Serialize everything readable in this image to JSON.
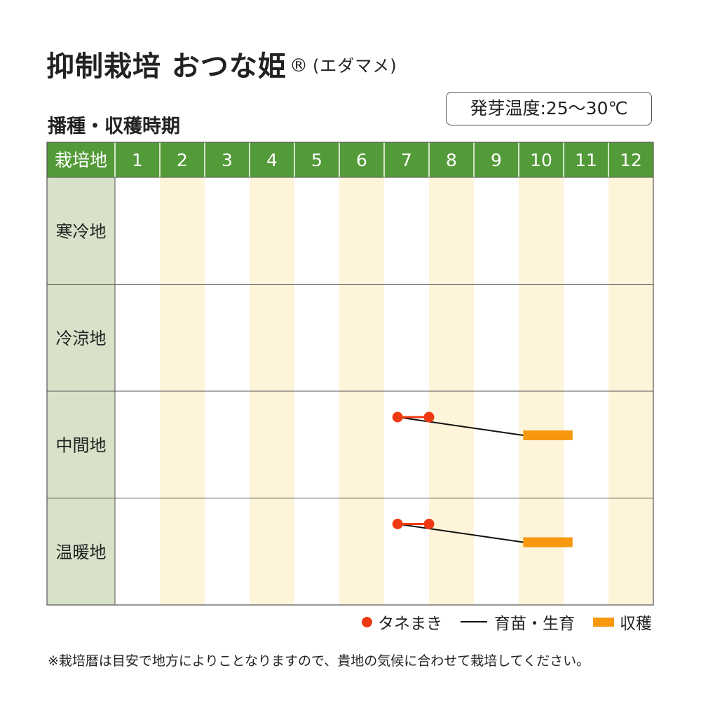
{
  "header": {
    "title": "抑制栽培 おつな姫",
    "registered": "®",
    "title_note": "(エダマメ)",
    "subtitle": "播種・収穫時期",
    "temperature": "発芽温度:25〜30℃"
  },
  "chart_data": {
    "type": "table",
    "corner_label": "栽培地",
    "months": [
      "1",
      "2",
      "3",
      "4",
      "5",
      "6",
      "7",
      "8",
      "9",
      "10",
      "11",
      "12"
    ],
    "regions": [
      "寒冷地",
      "冷涼地",
      "中間地",
      "温暖地"
    ],
    "schedules": [
      {
        "region": "中間地",
        "sowing": [
          7.3,
          8.0
        ],
        "growing": [
          7.3,
          10.1
        ],
        "harvest": [
          10.1,
          11.2
        ]
      },
      {
        "region": "温暖地",
        "sowing": [
          7.3,
          8.0
        ],
        "growing": [
          7.3,
          10.1
        ],
        "harvest": [
          10.1,
          11.2
        ]
      }
    ],
    "colors": {
      "header_green": "#539a38",
      "region_cell": "#d8e2c9",
      "stripe": "#fdf4d9",
      "sowing": "#ee3a12",
      "growing": "#111111",
      "harvest": "#f7980f"
    }
  },
  "legend": {
    "sowing": "タネまき",
    "growing": "育苗・生育",
    "harvest": "収穫"
  },
  "footnote": "※栽培暦は目安で地方によりことなりますので、貴地の気候に合わせて栽培してください。"
}
